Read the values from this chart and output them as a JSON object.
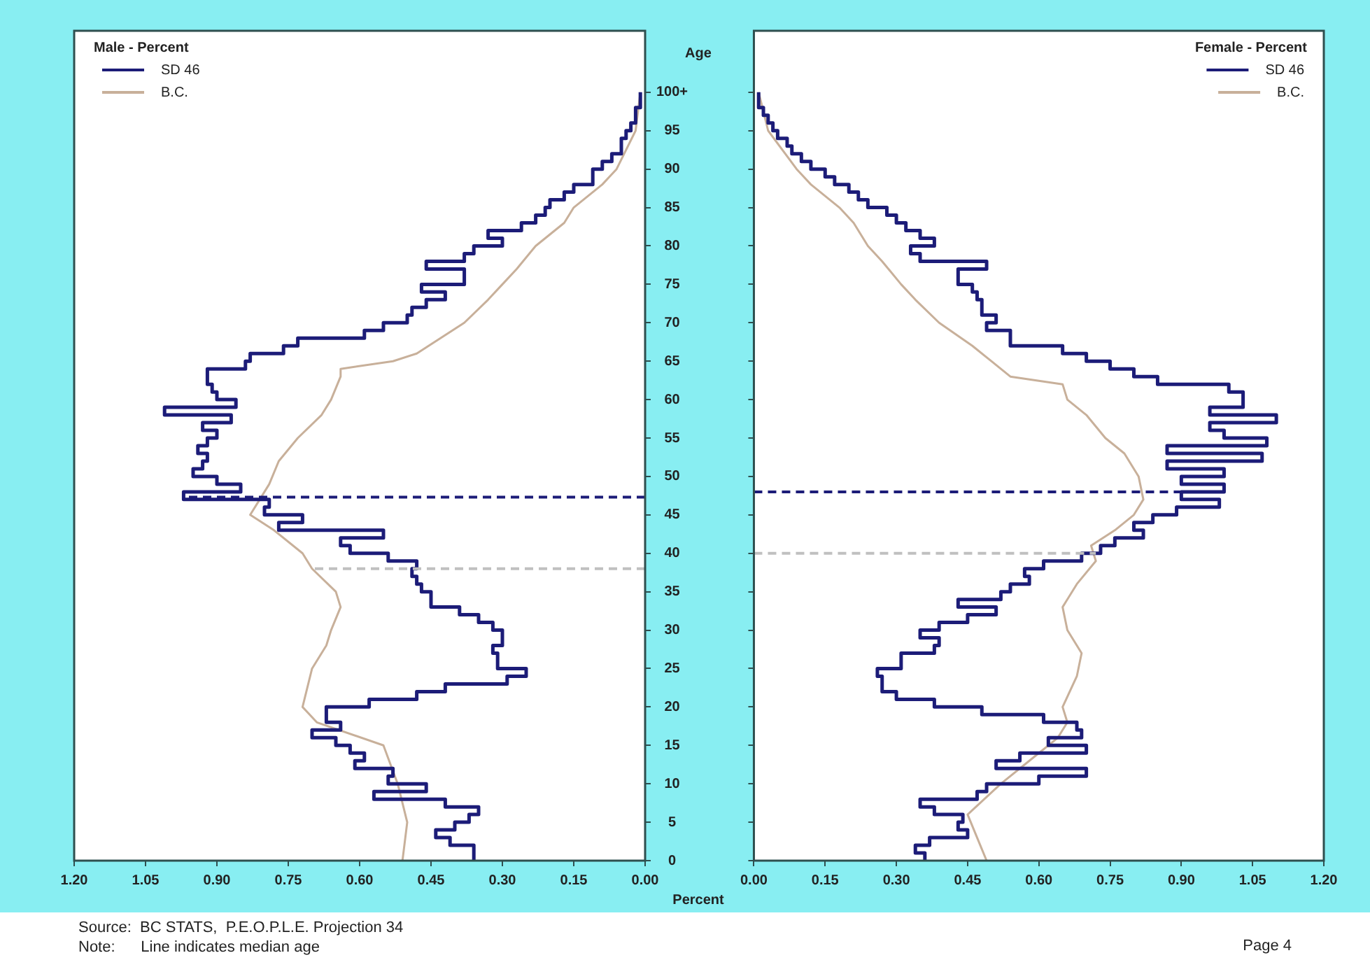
{
  "chart_data": [
    {
      "type": "step",
      "orientation": "horizontal",
      "legend_title": "Male - Percent",
      "legend": "top left",
      "ylabel": "Age",
      "xlabel": "Percent",
      "grid": false,
      "marker": "none",
      "line_style": "solid",
      "x": [
        0,
        1,
        2,
        3,
        4,
        5,
        6,
        7,
        8,
        9,
        10,
        11,
        12,
        13,
        14,
        15,
        16,
        17,
        18,
        19,
        20,
        21,
        22,
        23,
        24,
        25,
        26,
        27,
        28,
        29,
        30,
        31,
        32,
        33,
        34,
        35,
        36,
        37,
        38,
        39,
        40,
        41,
        42,
        43,
        44,
        45,
        46,
        47,
        48,
        49,
        50,
        51,
        52,
        53,
        54,
        55,
        56,
        57,
        58,
        59,
        60,
        61,
        62,
        63,
        64,
        65,
        66,
        67,
        68,
        69,
        70,
        71,
        72,
        73,
        74,
        75,
        76,
        77,
        78,
        79,
        80,
        81,
        82,
        83,
        84,
        85,
        86,
        87,
        88,
        89,
        90,
        91,
        92,
        93,
        94,
        95,
        96,
        97,
        98,
        99,
        100
      ],
      "series": [
        {
          "name": "SD 46",
          "color": "#1c1c78",
          "values": [
            0.36,
            0.36,
            0.41,
            0.44,
            0.4,
            0.37,
            0.35,
            0.42,
            0.57,
            0.46,
            0.54,
            0.53,
            0.61,
            0.59,
            0.62,
            0.65,
            0.7,
            0.64,
            0.67,
            0.67,
            0.58,
            0.48,
            0.42,
            0.29,
            0.25,
            0.31,
            0.31,
            0.32,
            0.3,
            0.3,
            0.32,
            0.35,
            0.39,
            0.45,
            0.45,
            0.47,
            0.48,
            0.49,
            0.48,
            0.54,
            0.62,
            0.64,
            0.55,
            0.77,
            0.72,
            0.8,
            0.79,
            0.97,
            0.85,
            0.9,
            0.95,
            0.93,
            0.92,
            0.94,
            0.92,
            0.9,
            0.93,
            0.87,
            1.01,
            0.86,
            0.9,
            0.91,
            0.92,
            0.92,
            0.84,
            0.83,
            0.76,
            0.73,
            0.59,
            0.55,
            0.5,
            0.49,
            0.46,
            0.42,
            0.47,
            0.38,
            0.38,
            0.46,
            0.38,
            0.36,
            0.3,
            0.33,
            0.26,
            0.23,
            0.21,
            0.2,
            0.17,
            0.15,
            0.11,
            0.11,
            0.09,
            0.07,
            0.05,
            0.05,
            0.04,
            0.03,
            0.02,
            0.02,
            0.01,
            0.01,
            0.01
          ]
        },
        {
          "name": "B.C.",
          "color": "#c8b09a",
          "type": "line",
          "x": [
            0,
            5,
            10,
            15,
            18,
            20,
            25,
            28,
            30,
            33,
            35,
            38,
            40,
            43,
            45,
            47,
            49,
            52,
            55,
            58,
            60,
            63,
            64,
            65,
            66,
            68,
            70,
            73,
            75,
            77,
            80,
            83,
            85,
            88,
            90,
            95,
            100
          ],
          "values": [
            0.51,
            0.5,
            0.52,
            0.55,
            0.69,
            0.72,
            0.7,
            0.67,
            0.66,
            0.64,
            0.65,
            0.7,
            0.72,
            0.78,
            0.83,
            0.81,
            0.79,
            0.77,
            0.73,
            0.68,
            0.66,
            0.64,
            0.64,
            0.53,
            0.48,
            0.43,
            0.38,
            0.33,
            0.3,
            0.27,
            0.23,
            0.17,
            0.15,
            0.09,
            0.06,
            0.02,
            0.01
          ]
        }
      ],
      "xlim": [
        1.2,
        0
      ],
      "xticks": [
        {
          "value": 1.2,
          "label": "1.20"
        },
        {
          "value": 1.05,
          "label": "1.05"
        },
        {
          "value": 0.9,
          "label": "0.90"
        },
        {
          "value": 0.75,
          "label": "0.75"
        },
        {
          "value": 0.6,
          "label": "0.60"
        },
        {
          "value": 0.45,
          "label": "0.45"
        },
        {
          "value": 0.3,
          "label": "0.30"
        },
        {
          "value": 0.15,
          "label": "0.15"
        },
        {
          "value": 0,
          "label": "0.00"
        }
      ],
      "ylim": [
        0,
        108
      ],
      "yticks": [
        0,
        5,
        10,
        15,
        20,
        25,
        30,
        35,
        40,
        45,
        50,
        55,
        60,
        65,
        70,
        75,
        80,
        85,
        90,
        95,
        {
          "value": 100,
          "label": "100+"
        }
      ],
      "ref_lines": [
        {
          "axis": "y",
          "value": 47.3,
          "color": "#1c1c78",
          "line_style": "dashed"
        },
        {
          "axis": "y",
          "value": 38,
          "color": "#c0c0c0",
          "line_style": "dashed"
        }
      ],
      "annotations": [
        "Source:  BC STATS,  P.E.O.P.L.E. Projection 34",
        "Note:      Line indicates median age",
        "Page 4"
      ]
    },
    {
      "type": "step",
      "orientation": "horizontal",
      "legend_title": "Female - Percent",
      "legend": "top right",
      "grid": false,
      "marker": "none",
      "line_style": "solid",
      "tick_labels": "x",
      "x": [
        0,
        1,
        2,
        3,
        4,
        5,
        6,
        7,
        8,
        9,
        10,
        11,
        12,
        13,
        14,
        15,
        16,
        17,
        18,
        19,
        20,
        21,
        22,
        23,
        24,
        25,
        26,
        27,
        28,
        29,
        30,
        31,
        32,
        33,
        34,
        35,
        36,
        37,
        38,
        39,
        40,
        41,
        42,
        43,
        44,
        45,
        46,
        47,
        48,
        49,
        50,
        51,
        52,
        53,
        54,
        55,
        56,
        57,
        58,
        59,
        60,
        61,
        62,
        63,
        64,
        65,
        66,
        67,
        68,
        69,
        70,
        71,
        72,
        73,
        74,
        75,
        76,
        77,
        78,
        79,
        80,
        81,
        82,
        83,
        84,
        85,
        86,
        87,
        88,
        89,
        90,
        91,
        92,
        93,
        94,
        95,
        96,
        97,
        98,
        99,
        100
      ],
      "series": [
        {
          "name": "SD 46",
          "color": "#1c1c78",
          "values": [
            0.36,
            0.34,
            0.37,
            0.45,
            0.43,
            0.44,
            0.38,
            0.35,
            0.47,
            0.49,
            0.6,
            0.7,
            0.51,
            0.56,
            0.7,
            0.62,
            0.69,
            0.68,
            0.61,
            0.48,
            0.38,
            0.3,
            0.27,
            0.27,
            0.26,
            0.31,
            0.31,
            0.38,
            0.39,
            0.35,
            0.39,
            0.45,
            0.51,
            0.43,
            0.52,
            0.54,
            0.58,
            0.57,
            0.61,
            0.69,
            0.73,
            0.76,
            0.82,
            0.8,
            0.84,
            0.89,
            0.98,
            0.9,
            0.99,
            0.9,
            0.99,
            0.87,
            1.07,
            0.87,
            1.08,
            0.99,
            0.96,
            1.1,
            0.96,
            1.03,
            1.03,
            1.0,
            0.85,
            0.8,
            0.75,
            0.7,
            0.65,
            0.54,
            0.54,
            0.49,
            0.51,
            0.48,
            0.48,
            0.47,
            0.46,
            0.43,
            0.43,
            0.49,
            0.35,
            0.33,
            0.38,
            0.35,
            0.32,
            0.3,
            0.28,
            0.24,
            0.22,
            0.2,
            0.17,
            0.15,
            0.12,
            0.1,
            0.08,
            0.07,
            0.05,
            0.04,
            0.03,
            0.02,
            0.01,
            0.01,
            0.01
          ]
        },
        {
          "name": "B.C.",
          "color": "#c8b09a",
          "type": "line",
          "x": [
            0,
            3,
            6,
            10,
            13,
            16,
            18,
            20,
            24,
            27,
            30,
            33,
            36,
            39,
            41,
            43,
            45,
            47,
            50,
            53,
            55,
            58,
            60,
            62,
            63,
            65,
            67,
            70,
            73,
            75,
            78,
            80,
            83,
            85,
            88,
            90,
            95,
            100
          ],
          "values": [
            0.49,
            0.47,
            0.45,
            0.52,
            0.58,
            0.64,
            0.66,
            0.65,
            0.68,
            0.69,
            0.66,
            0.65,
            0.68,
            0.72,
            0.71,
            0.76,
            0.8,
            0.82,
            0.81,
            0.78,
            0.74,
            0.7,
            0.66,
            0.65,
            0.54,
            0.5,
            0.46,
            0.39,
            0.34,
            0.31,
            0.27,
            0.24,
            0.21,
            0.18,
            0.12,
            0.09,
            0.03,
            0.01
          ]
        }
      ],
      "xlim": [
        0,
        1.2
      ],
      "xticks": [
        {
          "value": 0,
          "label": "0.00"
        },
        {
          "value": 0.15,
          "label": "0.15"
        },
        {
          "value": 0.3,
          "label": "0.30"
        },
        {
          "value": 0.45,
          "label": "0.45"
        },
        {
          "value": 0.6,
          "label": "0.60"
        },
        {
          "value": 0.75,
          "label": "0.75"
        },
        {
          "value": 0.9,
          "label": "0.90"
        },
        {
          "value": 1.05,
          "label": "1.05"
        },
        {
          "value": 1.2,
          "label": "1.20"
        }
      ],
      "ylim": [
        0,
        108
      ],
      "yticks": [
        {
          "value": 0,
          "label": null
        },
        {
          "value": 5,
          "label": null
        },
        {
          "value": 10,
          "label": null
        },
        {
          "value": 15,
          "label": null
        },
        {
          "value": 20,
          "label": null
        },
        {
          "value": 25,
          "label": null
        },
        {
          "value": 30,
          "label": null
        },
        {
          "value": 35,
          "label": null
        },
        {
          "value": 40,
          "label": null
        },
        {
          "value": 45,
          "label": null
        },
        {
          "value": 50,
          "label": null
        },
        {
          "value": 55,
          "label": null
        },
        {
          "value": 60,
          "label": null
        },
        {
          "value": 65,
          "label": null
        },
        {
          "value": 70,
          "label": null
        },
        {
          "value": 75,
          "label": null
        },
        {
          "value": 80,
          "label": null
        },
        {
          "value": 85,
          "label": null
        },
        {
          "value": 90,
          "label": null
        },
        {
          "value": 95,
          "label": null
        },
        {
          "value": 100,
          "label": null
        }
      ],
      "ref_lines": [
        {
          "axis": "y",
          "value": 48,
          "color": "#1c1c78",
          "line_style": "dashed"
        },
        {
          "axis": "y",
          "value": 40,
          "color": "#c0c0c0",
          "line_style": "dashed"
        }
      ]
    }
  ]
}
